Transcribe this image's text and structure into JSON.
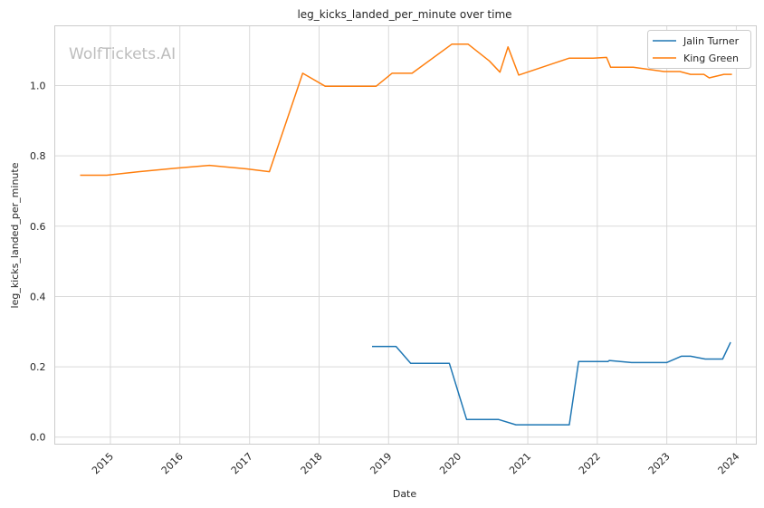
{
  "chart_data": {
    "type": "line",
    "title": "leg_kicks_landed_per_minute over time",
    "xlabel": "Date",
    "ylabel": "leg_kicks_landed_per_minute",
    "watermark": "WolfTickets.AI",
    "x_ticks": [
      "2015",
      "2016",
      "2017",
      "2018",
      "2019",
      "2020",
      "2021",
      "2022",
      "2023",
      "2024"
    ],
    "y_ticks": [
      "0.0",
      "0.2",
      "0.4",
      "0.6",
      "0.8",
      "1.0"
    ],
    "xlim": [
      "2014-03-15",
      "2024-04-15"
    ],
    "ylim": [
      -0.02,
      1.17
    ],
    "grid": true,
    "legend_position": "top-right",
    "series": [
      {
        "name": "Jalin Turner",
        "color": "#1f77b4",
        "points": [
          [
            "2018-10-06",
            0.258
          ],
          [
            "2019-02-09",
            0.258
          ],
          [
            "2019-04-27",
            0.21
          ],
          [
            "2019-06-29",
            0.21
          ],
          [
            "2019-11-16",
            0.21
          ],
          [
            "2020-02-15",
            0.05
          ],
          [
            "2020-08-01",
            0.05
          ],
          [
            "2020-10-31",
            0.035
          ],
          [
            "2021-08-07",
            0.035
          ],
          [
            "2021-09-25",
            0.215
          ],
          [
            "2022-02-26",
            0.215
          ],
          [
            "2022-03-05",
            0.218
          ],
          [
            "2022-06-30",
            0.212
          ],
          [
            "2022-12-31",
            0.212
          ],
          [
            "2023-03-18",
            0.23
          ],
          [
            "2023-05-06",
            0.23
          ],
          [
            "2023-07-22",
            0.222
          ],
          [
            "2023-10-21",
            0.222
          ],
          [
            "2023-12-02",
            0.27
          ]
        ]
      },
      {
        "name": "King Green",
        "color": "#ff7f0e",
        "points": [
          [
            "2014-07-26",
            0.745
          ],
          [
            "2014-12-13",
            0.745
          ],
          [
            "2015-05-30",
            0.755
          ],
          [
            "2015-12-10",
            0.765
          ],
          [
            "2016-06-04",
            0.773
          ],
          [
            "2016-12-17",
            0.763
          ],
          [
            "2017-04-15",
            0.755
          ],
          [
            "2017-10-07",
            1.035
          ],
          [
            "2018-02-03",
            0.998
          ],
          [
            "2018-05-19",
            0.998
          ],
          [
            "2018-10-27",
            0.998
          ],
          [
            "2019-01-19",
            1.035
          ],
          [
            "2019-05-04",
            1.035
          ],
          [
            "2019-11-30",
            1.118
          ],
          [
            "2020-02-22",
            1.118
          ],
          [
            "2020-06-13",
            1.07
          ],
          [
            "2020-08-08",
            1.038
          ],
          [
            "2020-09-19",
            1.11
          ],
          [
            "2020-11-14",
            1.03
          ],
          [
            "2021-08-07",
            1.078
          ],
          [
            "2021-12-11",
            1.078
          ],
          [
            "2022-02-19",
            1.08
          ],
          [
            "2022-03-12",
            1.052
          ],
          [
            "2022-07-09",
            1.052
          ],
          [
            "2022-12-17",
            1.04
          ],
          [
            "2023-03-11",
            1.04
          ],
          [
            "2023-05-06",
            1.032
          ],
          [
            "2023-07-15",
            1.032
          ],
          [
            "2023-08-12",
            1.022
          ],
          [
            "2023-10-28",
            1.032
          ],
          [
            "2023-12-09",
            1.032
          ]
        ]
      }
    ]
  }
}
